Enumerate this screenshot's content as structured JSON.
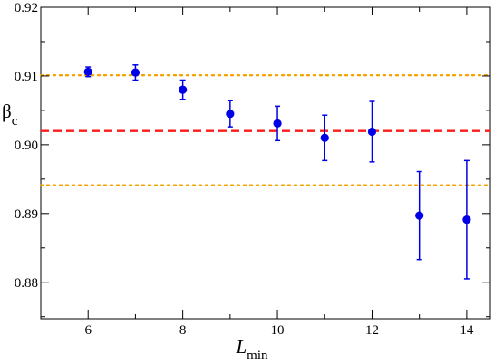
{
  "chart_data": {
    "type": "scatter",
    "title": "",
    "xlabel": {
      "main": "L",
      "sub": "min"
    },
    "ylabel": {
      "main": "β",
      "sub": "c"
    },
    "xlim": [
      5,
      14.5
    ],
    "ylim": [
      0.8747,
      0.92
    ],
    "xticks": [
      6,
      8,
      10,
      12,
      14
    ],
    "xtick_labels": [
      "6",
      "8",
      "10",
      "12",
      "14"
    ],
    "xminor": [
      5,
      7,
      9,
      11,
      13
    ],
    "yticks": [
      0.88,
      0.89,
      0.9,
      0.91,
      0.92
    ],
    "ytick_labels": [
      "0.88",
      "0.89",
      "0.90",
      "0.91",
      "0.92"
    ],
    "yminor": [
      0.875,
      0.885,
      0.895,
      0.905,
      0.915
    ],
    "grid": false,
    "legend": "none",
    "series": [
      {
        "color": "#0000e6",
        "points": [
          {
            "x": 6,
            "y": 0.9106,
            "err": 0.0007
          },
          {
            "x": 7,
            "y": 0.9105,
            "err": 0.0011
          },
          {
            "x": 8,
            "y": 0.908,
            "err": 0.0014
          },
          {
            "x": 9,
            "y": 0.9045,
            "err": 0.0019
          },
          {
            "x": 10,
            "y": 0.9031,
            "err": 0.0025
          },
          {
            "x": 11,
            "y": 0.901,
            "err": 0.0033
          },
          {
            "x": 12,
            "y": 0.9019,
            "err": 0.0044
          },
          {
            "x": 13,
            "y": 0.8897,
            "err": 0.0064
          },
          {
            "x": 14,
            "y": 0.8891,
            "err": 0.0086
          }
        ]
      }
    ],
    "reference_lines": [
      {
        "y": 0.902,
        "style": "dashed",
        "color": "#ff1a1a"
      },
      {
        "y": 0.9101,
        "style": "dotted",
        "color": "#f5a300"
      },
      {
        "y": 0.8941,
        "style": "dotted",
        "color": "#f5a300"
      }
    ]
  }
}
